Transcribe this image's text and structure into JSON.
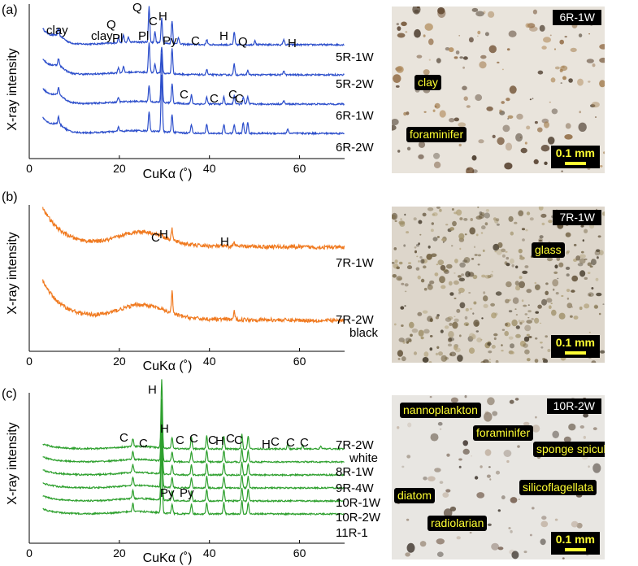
{
  "panels": [
    {
      "label": "(a)",
      "ylabel": "X-ray intensity",
      "xlabel": "CuKα (˚)",
      "color": "#2c4ecb",
      "samples": [
        "5R-1W",
        "5R-2W",
        "6R-1W",
        "6R-2W"
      ],
      "extra_sample_text": "",
      "peak_labels": [
        {
          "text": "clay",
          "x": 7
        },
        {
          "text": "clay",
          "x": 19.8
        },
        {
          "text": "Q",
          "x": 20.9
        },
        {
          "text": "Pl",
          "x": 22.0
        },
        {
          "text": "Q",
          "x": 26.6
        },
        {
          "text": "Pl",
          "x": 27.9
        },
        {
          "text": "C",
          "x": 29.4
        },
        {
          "text": "H",
          "x": 31.7
        },
        {
          "text": "Py",
          "x": 33.1
        },
        {
          "text": "C",
          "x": 39.4
        },
        {
          "text": "H",
          "x": 45.5
        },
        {
          "text": "Q",
          "x": 50.1
        },
        {
          "text": "H",
          "x": 56.5
        },
        {
          "text": "C",
          "x": 36.0
        },
        {
          "text": "C",
          "x": 43.2
        },
        {
          "text": "C",
          "x": 47.5
        },
        {
          "text": "C",
          "x": 48.5
        }
      ]
    },
    {
      "label": "(b)",
      "ylabel": "X-ray intensity",
      "xlabel": "CuKα (˚)",
      "color": "#f07a20",
      "samples": [
        "7R-1W",
        "7R-2W"
      ],
      "extra_sample_text": "black",
      "peak_labels": [
        {
          "text": "C",
          "x": 29.4
        },
        {
          "text": "H",
          "x": 31.7
        },
        {
          "text": "H",
          "x": 45.5
        }
      ]
    },
    {
      "label": "(c)",
      "ylabel": "X-ray intensity",
      "xlabel": "CuKα (˚)",
      "color": "#2ea02e",
      "samples": [
        "7R-2W",
        "8R-1W",
        "9R-4W",
        "10R-1W",
        "10R-2W",
        "11R-1"
      ],
      "extra_sample_text": "white",
      "peak_labels": [
        {
          "text": "C",
          "x": 29.4
        },
        {
          "text": "C",
          "x": 23.0
        },
        {
          "text": "H",
          "x": 26.0
        },
        {
          "text": "H",
          "x": 31.7
        },
        {
          "text": "C",
          "x": 36.0
        },
        {
          "text": "C",
          "x": 39.4
        },
        {
          "text": "C",
          "x": 43.2
        },
        {
          "text": "H",
          "x": 44.8
        },
        {
          "text": "C",
          "x": 47.2
        },
        {
          "text": "C",
          "x": 48.6
        },
        {
          "text": "H",
          "x": 56.5
        },
        {
          "text": "C",
          "x": 57.4
        },
        {
          "text": "C",
          "x": 60.7
        },
        {
          "text": "C",
          "x": 64.7
        },
        {
          "text": "Py",
          "x": 33.1
        },
        {
          "text": "Py",
          "x": 37.0
        }
      ]
    }
  ],
  "micrographs": [
    {
      "sample": "6R-1W",
      "callouts": [
        "clay",
        "foraminifer"
      ],
      "scale": "0.1 mm"
    },
    {
      "sample": "7R-1W",
      "callouts": [
        "glass"
      ],
      "scale": "0.1 mm"
    },
    {
      "sample": "10R-2W",
      "callouts": [
        "nannoplankton",
        "foraminifer",
        "sponge spicule",
        "diatom",
        "silicoflagellata",
        "radiolarian"
      ],
      "scale": "0.1 mm"
    }
  ],
  "chart_data": [
    {
      "type": "line",
      "title": "",
      "xlabel": "CuKα (˚)",
      "ylabel": "X-ray intensity",
      "xlim": [
        0,
        70
      ],
      "xticks": [
        0,
        20,
        40,
        60
      ],
      "grid": false,
      "series": [
        {
          "name": "5R-1W",
          "peaks": [
            [
              6.5,
              8
            ],
            [
              19.8,
              6
            ],
            [
              20.9,
              8
            ],
            [
              22.0,
              6
            ],
            [
              26.6,
              40
            ],
            [
              27.9,
              12
            ],
            [
              29.4,
              28
            ],
            [
              31.7,
              26
            ],
            [
              33.1,
              8
            ],
            [
              39.4,
              6
            ],
            [
              45.5,
              14
            ],
            [
              50.1,
              5
            ],
            [
              56.5,
              6
            ]
          ]
        },
        {
          "name": "5R-2W",
          "peaks": [
            [
              6.5,
              8
            ],
            [
              19.8,
              6
            ],
            [
              20.9,
              7
            ],
            [
              26.6,
              34
            ],
            [
              27.9,
              10
            ],
            [
              29.4,
              30
            ],
            [
              31.7,
              28
            ],
            [
              39.4,
              6
            ],
            [
              45.5,
              12
            ],
            [
              48.5,
              5
            ],
            [
              56.5,
              5
            ]
          ]
        },
        {
          "name": "6R-1W",
          "peaks": [
            [
              6.5,
              8
            ],
            [
              19.8,
              5
            ],
            [
              26.6,
              18
            ],
            [
              29.4,
              55
            ],
            [
              31.7,
              22
            ],
            [
              36.0,
              10
            ],
            [
              39.4,
              8
            ],
            [
              43.2,
              8
            ],
            [
              45.5,
              10
            ],
            [
              47.5,
              8
            ],
            [
              48.5,
              8
            ],
            [
              56.5,
              4
            ]
          ]
        },
        {
          "name": "6R-2W",
          "peaks": [
            [
              6.5,
              8
            ],
            [
              19.8,
              5
            ],
            [
              26.6,
              22
            ],
            [
              29.4,
              64
            ],
            [
              31.7,
              20
            ],
            [
              36.0,
              10
            ],
            [
              39.4,
              10
            ],
            [
              43.2,
              10
            ],
            [
              45.5,
              10
            ],
            [
              47.5,
              12
            ],
            [
              48.5,
              12
            ],
            [
              57.4,
              5
            ]
          ]
        }
      ]
    },
    {
      "type": "line",
      "title": "",
      "xlabel": "CuKα (˚)",
      "ylabel": "X-ray intensity",
      "xlim": [
        0,
        70
      ],
      "xticks": [
        0,
        20,
        40,
        60
      ],
      "grid": false,
      "series": [
        {
          "name": "7R-1W",
          "peaks": [
            [
              29.4,
              4
            ],
            [
              31.7,
              12
            ],
            [
              45.5,
              5
            ]
          ]
        },
        {
          "name": "7R-2W",
          "peaks": [
            [
              31.7,
              22
            ],
            [
              45.5,
              8
            ]
          ]
        }
      ]
    },
    {
      "type": "line",
      "title": "",
      "xlabel": "CuKα (˚)",
      "ylabel": "X-ray intensity",
      "xlim": [
        0,
        70
      ],
      "xticks": [
        0,
        20,
        40,
        60
      ],
      "grid": false,
      "series": [
        {
          "name": "7R-2W",
          "peaks": [
            [
              23.0,
              10
            ],
            [
              29.4,
              85
            ],
            [
              31.7,
              14
            ],
            [
              36.0,
              14
            ],
            [
              39.4,
              16
            ],
            [
              43.2,
              16
            ],
            [
              47.2,
              18
            ],
            [
              48.6,
              16
            ],
            [
              57.4,
              6
            ],
            [
              60.7,
              5
            ],
            [
              64.7,
              4
            ]
          ]
        },
        {
          "name": "8R-1W",
          "peaks": [
            [
              23.0,
              10
            ],
            [
              29.4,
              75
            ],
            [
              31.7,
              12
            ],
            [
              36.0,
              12
            ],
            [
              39.4,
              14
            ],
            [
              43.2,
              14
            ],
            [
              47.2,
              16
            ],
            [
              48.6,
              14
            ]
          ]
        },
        {
          "name": "9R-4W",
          "peaks": [
            [
              23.0,
              10
            ],
            [
              29.4,
              75
            ],
            [
              31.7,
              12
            ],
            [
              36.0,
              12
            ],
            [
              39.4,
              14
            ],
            [
              43.2,
              14
            ],
            [
              47.2,
              16
            ],
            [
              48.6,
              14
            ]
          ]
        },
        {
          "name": "10R-1W",
          "peaks": [
            [
              23.0,
              10
            ],
            [
              29.4,
              75
            ],
            [
              31.7,
              12
            ],
            [
              36.0,
              12
            ],
            [
              39.4,
              14
            ],
            [
              43.2,
              14
            ],
            [
              47.2,
              16
            ],
            [
              48.6,
              14
            ]
          ]
        },
        {
          "name": "10R-2W",
          "peaks": [
            [
              23.0,
              10
            ],
            [
              29.4,
              75
            ],
            [
              31.7,
              12
            ],
            [
              36.0,
              12
            ],
            [
              39.4,
              14
            ],
            [
              43.2,
              14
            ],
            [
              47.2,
              16
            ],
            [
              48.6,
              14
            ]
          ]
        },
        {
          "name": "11R-1",
          "peaks": [
            [
              23.0,
              10
            ],
            [
              29.4,
              75
            ],
            [
              31.7,
              12
            ],
            [
              36.0,
              12
            ],
            [
              39.4,
              14
            ],
            [
              43.2,
              14
            ],
            [
              47.2,
              16
            ],
            [
              48.6,
              14
            ]
          ]
        }
      ]
    }
  ]
}
